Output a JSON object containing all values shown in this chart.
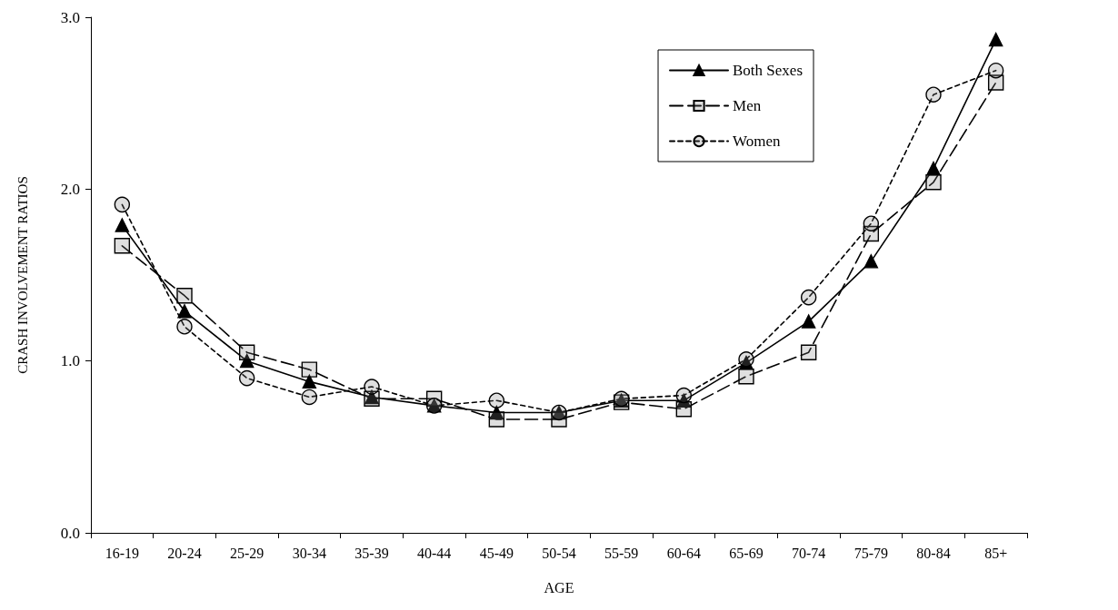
{
  "chart_data": {
    "type": "line",
    "xlabel": "AGE",
    "ylabel": "CRASH INVOLVEMENT RATIOS",
    "categories": [
      "16-19",
      "20-24",
      "25-29",
      "30-34",
      "35-39",
      "40-44",
      "45-49",
      "50-54",
      "55-59",
      "60-64",
      "65-69",
      "70-74",
      "75-79",
      "80-84",
      "85+"
    ],
    "ylim": [
      0,
      3
    ],
    "yticks": [
      {
        "value": 0,
        "label": "0.0"
      },
      {
        "value": 1,
        "label": "1.0"
      },
      {
        "value": 2,
        "label": "2.0"
      },
      {
        "value": 3,
        "label": "3.0"
      }
    ],
    "grid": false,
    "legend": "top right",
    "series": [
      {
        "name": "Both Sexes",
        "color": "#000000",
        "marker": "triangle",
        "line_style": "solid",
        "values": [
          1.79,
          1.29,
          1.0,
          0.88,
          0.79,
          0.74,
          0.7,
          0.7,
          0.77,
          0.77,
          0.99,
          1.23,
          1.58,
          2.12,
          2.87
        ]
      },
      {
        "name": "Men",
        "color": "#000000",
        "marker": "square",
        "line_style": "dashed",
        "values": [
          1.67,
          1.38,
          1.05,
          0.95,
          0.78,
          0.78,
          0.66,
          0.66,
          0.76,
          0.72,
          0.91,
          1.05,
          1.74,
          2.04,
          2.62
        ]
      },
      {
        "name": "Women",
        "color": "#000000",
        "marker": "circle",
        "line_style": "dotted",
        "values": [
          1.91,
          1.2,
          0.9,
          0.79,
          0.85,
          0.74,
          0.77,
          0.7,
          0.78,
          0.8,
          1.01,
          1.37,
          1.8,
          2.55,
          2.69
        ]
      }
    ]
  }
}
